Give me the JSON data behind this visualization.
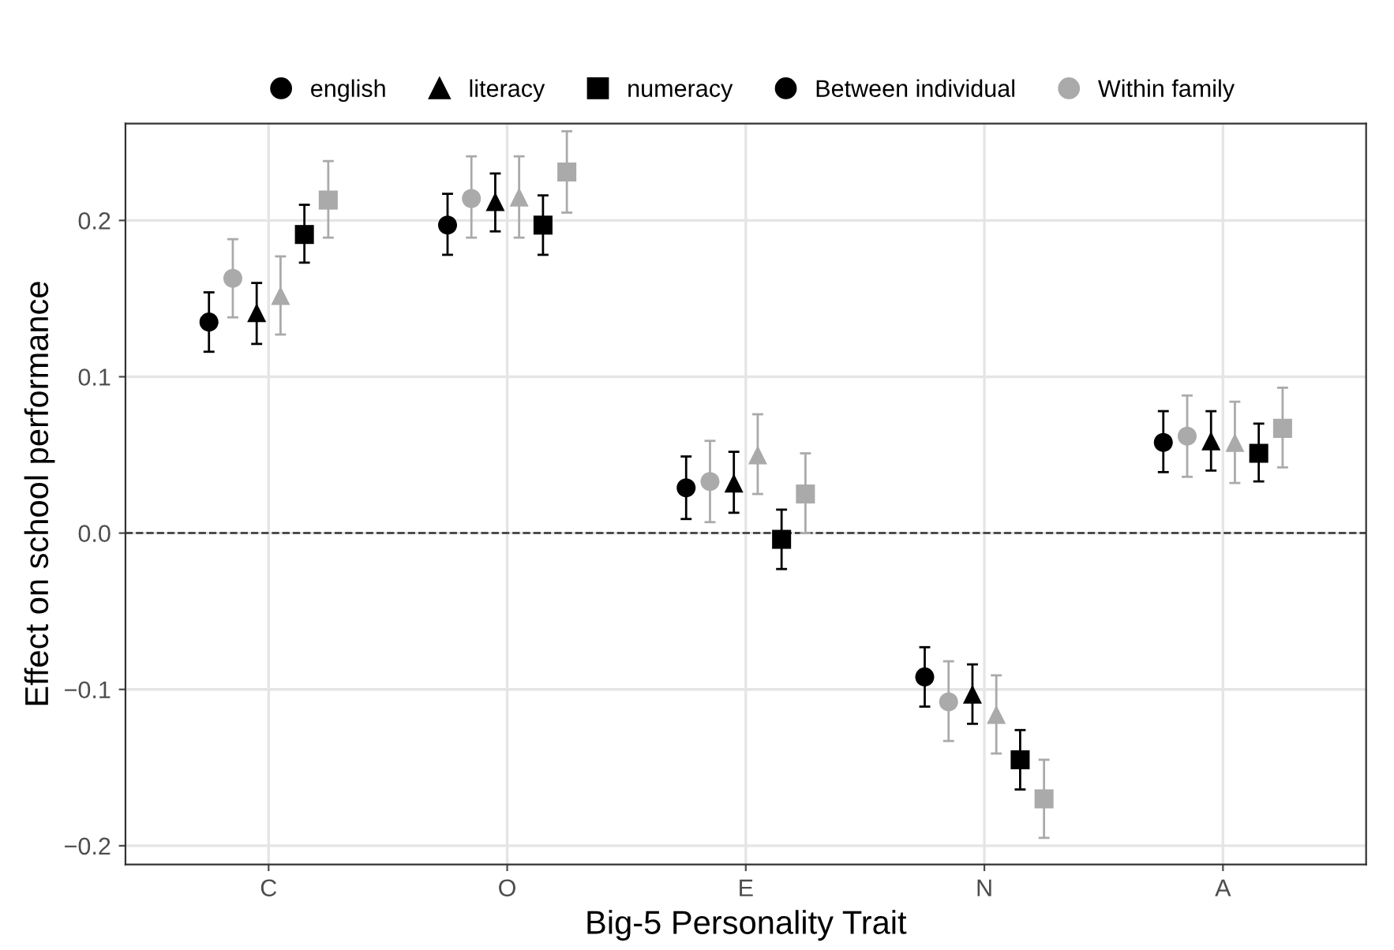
{
  "chart_data": {
    "type": "scatter",
    "xlabel": "Big-5 Personality Trait",
    "ylabel": "Effect on school performance",
    "categories": [
      "C",
      "O",
      "E",
      "N",
      "A"
    ],
    "series": [
      {
        "color": "#000000",
        "marker": "circle",
        "values": [
          0.135,
          0.197,
          0.029,
          -0.092,
          0.058
        ],
        "errors": [
          [
            0.116,
            0.154
          ],
          [
            0.178,
            0.217
          ],
          [
            0.009,
            0.049
          ],
          [
            -0.111,
            -0.073
          ],
          [
            0.039,
            0.078
          ]
        ]
      },
      {
        "color": "#aaaaaa",
        "marker": "circle",
        "values": [
          0.163,
          0.214,
          0.033,
          -0.108,
          0.062
        ],
        "errors": [
          [
            0.138,
            0.188
          ],
          [
            0.189,
            0.241
          ],
          [
            0.007,
            0.059
          ],
          [
            -0.133,
            -0.082
          ],
          [
            0.036,
            0.088
          ]
        ]
      },
      {
        "color": "#000000",
        "marker": "triangle",
        "values": [
          0.141,
          0.212,
          0.032,
          -0.103,
          0.059
        ],
        "errors": [
          [
            0.121,
            0.16
          ],
          [
            0.193,
            0.23
          ],
          [
            0.013,
            0.052
          ],
          [
            -0.122,
            -0.084
          ],
          [
            0.04,
            0.078
          ]
        ]
      },
      {
        "color": "#aaaaaa",
        "marker": "triangle",
        "values": [
          0.152,
          0.215,
          0.05,
          -0.116,
          0.058
        ],
        "errors": [
          [
            0.127,
            0.177
          ],
          [
            0.189,
            0.241
          ],
          [
            0.025,
            0.076
          ],
          [
            -0.141,
            -0.091
          ],
          [
            0.032,
            0.084
          ]
        ]
      },
      {
        "color": "#000000",
        "marker": "square",
        "values": [
          0.191,
          0.197,
          -0.004,
          -0.145,
          0.051
        ],
        "errors": [
          [
            0.173,
            0.21
          ],
          [
            0.178,
            0.216
          ],
          [
            -0.023,
            0.015
          ],
          [
            -0.164,
            -0.126
          ],
          [
            0.033,
            0.07
          ]
        ]
      },
      {
        "color": "#aaaaaa",
        "marker": "square",
        "values": [
          0.213,
          0.231,
          0.025,
          -0.17,
          0.067
        ],
        "errors": [
          [
            0.189,
            0.238
          ],
          [
            0.205,
            0.257
          ],
          [
            0.0,
            0.051
          ],
          [
            -0.195,
            -0.145
          ],
          [
            0.042,
            0.093
          ]
        ]
      }
    ],
    "annotations": [
      "english",
      "literacy",
      "numeracy",
      "Between individual",
      "Within family"
    ],
    "ylim": [
      -0.212,
      0.262
    ],
    "yticks": [
      {
        "value": -0.2,
        "label": "−0.2"
      },
      {
        "value": -0.1,
        "label": "−0.1"
      },
      {
        "value": 0,
        "label": "0.0"
      },
      0.1,
      0.2
    ],
    "ref_lines": [
      {
        "axis": "y",
        "value": 0,
        "line_style": "dashed",
        "color": "#333333"
      }
    ],
    "grid": true
  }
}
